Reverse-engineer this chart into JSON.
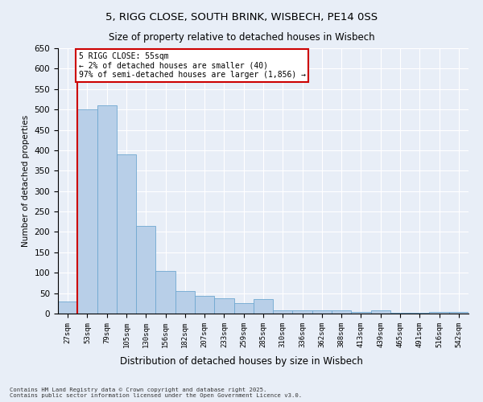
{
  "title": "5, RIGG CLOSE, SOUTH BRINK, WISBECH, PE14 0SS",
  "subtitle": "Size of property relative to detached houses in Wisbech",
  "xlabel": "Distribution of detached houses by size in Wisbech",
  "ylabel": "Number of detached properties",
  "categories": [
    "27sqm",
    "53sqm",
    "79sqm",
    "105sqm",
    "130sqm",
    "156sqm",
    "182sqm",
    "207sqm",
    "233sqm",
    "259sqm",
    "285sqm",
    "310sqm",
    "336sqm",
    "362sqm",
    "388sqm",
    "413sqm",
    "439sqm",
    "465sqm",
    "491sqm",
    "516sqm",
    "542sqm"
  ],
  "values": [
    30,
    500,
    510,
    390,
    215,
    105,
    55,
    43,
    37,
    25,
    35,
    8,
    8,
    8,
    8,
    4,
    8,
    2,
    2,
    4,
    4
  ],
  "bar_color": "#b8cfe8",
  "bar_edge_color": "#6fa8d0",
  "vline_color": "#cc0000",
  "vline_x": 0.5,
  "ylim": [
    0,
    650
  ],
  "yticks": [
    0,
    50,
    100,
    150,
    200,
    250,
    300,
    350,
    400,
    450,
    500,
    550,
    600,
    650
  ],
  "annotation_title": "5 RIGG CLOSE: 55sqm",
  "annotation_line1": "← 2% of detached houses are smaller (40)",
  "annotation_line2": "97% of semi-detached houses are larger (1,856) →",
  "annotation_box_color": "#cc0000",
  "fig_bg_color": "#e8eef7",
  "ax_bg_color": "#e8eef7",
  "footer_line1": "Contains HM Land Registry data © Crown copyright and database right 2025.",
  "footer_line2": "Contains public sector information licensed under the Open Government Licence v3.0."
}
